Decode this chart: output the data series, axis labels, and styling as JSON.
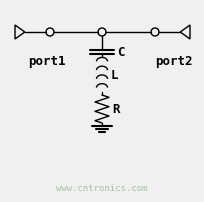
{
  "bg_color": "#f0f0f0",
  "line_color": "#000000",
  "text_color": "#000000",
  "watermark_color": "#90c090",
  "watermark_text": "www.cntronics.com",
  "port1_label": "port1",
  "port2_label": "port2",
  "label_C": "C",
  "label_L": "L",
  "label_R": "R",
  "fig_width": 2.05,
  "fig_height": 2.03
}
